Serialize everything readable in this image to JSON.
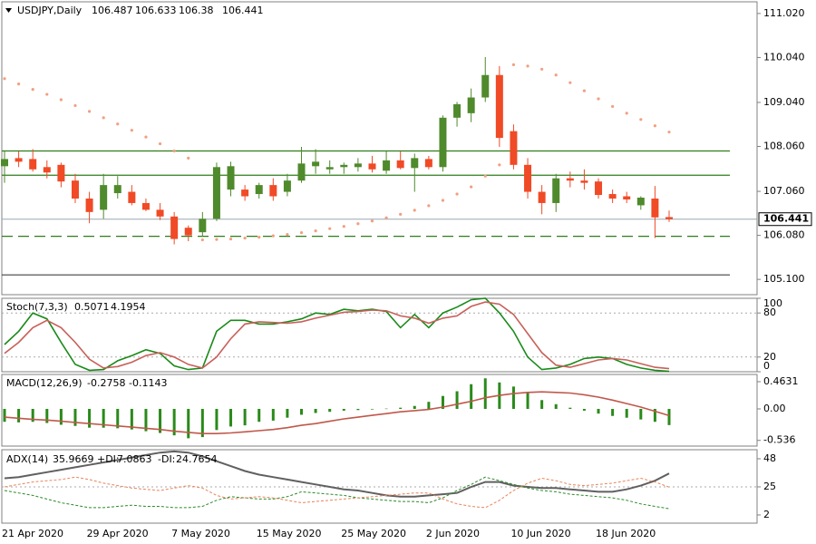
{
  "chart_data": [
    {
      "type": "candlestick",
      "title": "USDJPY,Daily",
      "categories": [
        "21 Apr 2020",
        null,
        null,
        null,
        null,
        null,
        "29 Apr 2020",
        null,
        null,
        null,
        null,
        null,
        "7 May 2020",
        null,
        null,
        null,
        null,
        null,
        "15 May 2020",
        null,
        null,
        null,
        null,
        null,
        "25 May 2020",
        null,
        null,
        null,
        null,
        null,
        "2 Jun 2020",
        null,
        null,
        null,
        null,
        null,
        "10 Jun 2020",
        null,
        null,
        null,
        null,
        null,
        "18 Jun 2020",
        null,
        null,
        null,
        null,
        null
      ],
      "open": [
        107.62,
        107.8,
        107.78,
        107.6,
        107.65,
        107.3,
        106.9,
        106.65,
        107.02,
        107.05,
        106.8,
        106.65,
        106.5,
        106.25,
        106.15,
        106.45,
        107.1,
        107.1,
        107.0,
        107.2,
        107.05,
        107.3,
        107.62,
        107.55,
        107.6,
        107.6,
        107.68,
        107.52,
        107.75,
        107.58,
        107.78,
        107.6,
        108.7,
        108.8,
        109.15,
        109.65,
        108.4,
        107.65,
        107.05,
        106.8,
        107.35,
        107.3,
        107.28,
        107.0,
        106.95,
        106.75,
        106.9,
        106.487
      ],
      "high": [
        107.95,
        107.95,
        108.0,
        107.75,
        107.7,
        107.45,
        107.05,
        107.45,
        107.4,
        107.2,
        106.9,
        106.8,
        106.6,
        106.3,
        106.6,
        107.7,
        107.72,
        107.2,
        107.25,
        107.35,
        107.45,
        108.05,
        108.0,
        107.75,
        107.7,
        107.8,
        107.85,
        107.95,
        107.95,
        107.9,
        107.85,
        108.75,
        109.05,
        109.35,
        110.05,
        109.85,
        108.55,
        107.8,
        107.2,
        107.45,
        107.5,
        107.55,
        107.35,
        107.1,
        107.05,
        106.95,
        107.18,
        106.633
      ],
      "low": [
        107.25,
        107.6,
        107.5,
        107.35,
        107.15,
        106.8,
        106.35,
        106.45,
        106.9,
        106.75,
        106.62,
        106.42,
        105.88,
        105.95,
        106.05,
        106.4,
        106.95,
        106.85,
        106.9,
        106.85,
        106.95,
        107.25,
        107.45,
        107.45,
        107.45,
        107.5,
        107.48,
        107.45,
        107.55,
        107.05,
        107.55,
        107.5,
        108.5,
        108.6,
        109.05,
        108.05,
        107.55,
        106.9,
        106.55,
        106.6,
        107.15,
        107.1,
        106.9,
        106.8,
        106.8,
        106.65,
        106.02,
        106.38
      ],
      "close": [
        107.78,
        107.72,
        107.55,
        107.48,
        107.28,
        106.9,
        106.6,
        107.2,
        107.2,
        106.8,
        106.65,
        106.5,
        106.0,
        106.08,
        106.45,
        107.6,
        107.62,
        106.95,
        107.2,
        106.95,
        107.3,
        107.68,
        107.72,
        107.6,
        107.65,
        107.68,
        107.55,
        107.75,
        107.58,
        107.8,
        107.6,
        108.7,
        109.0,
        109.15,
        109.65,
        108.25,
        107.65,
        107.05,
        106.8,
        107.35,
        107.3,
        107.25,
        106.98,
        106.9,
        106.88,
        106.92,
        106.48,
        106.441
      ],
      "up_color": "#4f8a2c",
      "down_color": "#f04a26",
      "sar": {
        "color": "#f0a080",
        "values": [
          109.57,
          109.45,
          109.33,
          109.22,
          109.1,
          108.97,
          108.84,
          108.7,
          108.56,
          108.42,
          108.27,
          108.12,
          107.96,
          107.8,
          105.98,
          105.99,
          106.0,
          106.02,
          106.04,
          106.07,
          106.1,
          106.14,
          106.18,
          106.23,
          106.28,
          106.34,
          106.4,
          106.47,
          106.55,
          106.64,
          106.74,
          106.86,
          107.0,
          107.16,
          107.4,
          107.65,
          109.88,
          109.85,
          109.78,
          109.65,
          109.48,
          109.3,
          109.12,
          108.95,
          108.8,
          108.66,
          108.52,
          108.38
        ]
      },
      "levels": [
        {
          "value": 107.96,
          "color": "#2e7d1a",
          "style": "solid"
        },
        {
          "value": 107.42,
          "color": "#2e7d1a",
          "style": "solid"
        },
        {
          "value": 106.06,
          "color": "#2e7d1a",
          "style": "dashed"
        },
        {
          "value": 105.2,
          "color": "#404040",
          "style": "solid"
        }
      ],
      "price_line_color": "#9aa8b0",
      "ylim": [
        104.76,
        111.28
      ],
      "yticks": [
        {
          "value": 105.1,
          "label": "105.100"
        },
        {
          "value": 106.08,
          "label": "106.080"
        },
        {
          "value": 107.06,
          "label": "107.060"
        },
        {
          "value": 108.06,
          "label": "108.060"
        },
        {
          "value": 109.04,
          "label": "109.040"
        },
        {
          "value": 110.04,
          "label": "110.040"
        },
        {
          "value": 111.02,
          "label": "111.020"
        }
      ],
      "grid": false
    },
    {
      "type": "line",
      "title": "Stoch(7,3,3)",
      "series": [
        {
          "color": "#1a8a1a",
          "width": 1.6,
          "style": "solid",
          "values": [
            37,
            55,
            80,
            72,
            40,
            10,
            2,
            3,
            15,
            22,
            30,
            25,
            8,
            3,
            5,
            55,
            70,
            70,
            65,
            65,
            68,
            72,
            80,
            78,
            85,
            83,
            85,
            82,
            60,
            78,
            60,
            80,
            88,
            98,
            100,
            80,
            55,
            20,
            3,
            5,
            10,
            18,
            20,
            18,
            10,
            5,
            2,
            0.5071
          ]
        },
        {
          "color": "#c8605a",
          "width": 1.6,
          "style": "solid",
          "values": [
            25,
            40,
            60,
            70,
            60,
            40,
            17,
            5,
            7,
            13,
            22,
            26,
            20,
            10,
            5,
            20,
            45,
            65,
            68,
            67,
            66,
            68,
            73,
            77,
            81,
            82,
            84,
            83,
            76,
            73,
            66,
            73,
            76,
            89,
            95,
            92,
            78,
            52,
            26,
            9,
            6,
            11,
            16,
            18,
            16,
            11,
            6,
            4.1954
          ]
        }
      ],
      "levels": [
        20,
        80
      ],
      "ylim": [
        0,
        100
      ],
      "yticks": [
        0,
        20,
        80,
        100
      ]
    },
    {
      "type": "line",
      "title": "MACD(12,26,9)",
      "series": [
        {
          "color": "#2a8a1a",
          "width": 3,
          "style": "bar",
          "values": [
            -0.22,
            -0.23,
            -0.22,
            -0.24,
            -0.27,
            -0.29,
            -0.32,
            -0.32,
            -0.33,
            -0.35,
            -0.38,
            -0.41,
            -0.45,
            -0.5,
            -0.48,
            -0.36,
            -0.3,
            -0.28,
            -0.22,
            -0.2,
            -0.15,
            -0.1,
            -0.07,
            -0.05,
            -0.03,
            -0.02,
            -0.01,
            0.005,
            0.02,
            0.05,
            0.12,
            0.22,
            0.3,
            0.42,
            0.52,
            0.45,
            0.38,
            0.28,
            0.15,
            0.08,
            0.02,
            -0.03,
            -0.08,
            -0.12,
            -0.15,
            -0.18,
            -0.22,
            -0.2758
          ]
        },
        {
          "color": "#c0584a",
          "width": 1.6,
          "style": "solid",
          "values": [
            -0.14,
            -0.16,
            -0.18,
            -0.19,
            -0.21,
            -0.23,
            -0.25,
            -0.27,
            -0.29,
            -0.31,
            -0.33,
            -0.35,
            -0.38,
            -0.4,
            -0.42,
            -0.42,
            -0.41,
            -0.39,
            -0.37,
            -0.35,
            -0.32,
            -0.28,
            -0.25,
            -0.21,
            -0.17,
            -0.14,
            -0.11,
            -0.08,
            -0.05,
            -0.03,
            -0.01,
            0.03,
            0.08,
            0.13,
            0.19,
            0.23,
            0.26,
            0.28,
            0.29,
            0.28,
            0.27,
            0.24,
            0.2,
            0.15,
            0.09,
            0.03,
            -0.04,
            -0.1143
          ]
        }
      ],
      "ylim": [
        -0.633,
        0.586
      ],
      "yticks": [
        -0.536,
        {
          "value": 0,
          "label": "0.00"
        },
        0.4631
      ]
    },
    {
      "type": "line",
      "title": "ADX(14)",
      "series": [
        {
          "color": "#606060",
          "width": 2,
          "style": "solid",
          "values": [
            32,
            33,
            35,
            37,
            39,
            41,
            43,
            45,
            47,
            49,
            51,
            53,
            54,
            53,
            50,
            46,
            42,
            38,
            35,
            33,
            31,
            29,
            27,
            25,
            23,
            22,
            20,
            18,
            17,
            17,
            18,
            19,
            20,
            25,
            29,
            29,
            26,
            25,
            24,
            24,
            23,
            22,
            21,
            21,
            23,
            26,
            30,
            35.9669
          ]
        },
        {
          "label": "+DI:",
          "color": "#2a8a2a",
          "width": 1,
          "style": "dashed",
          "values": [
            22,
            20,
            18,
            15,
            12,
            10,
            8,
            8,
            9,
            10,
            9,
            9,
            8,
            8,
            9,
            14,
            17,
            16,
            15,
            15,
            17,
            21,
            20,
            19,
            18,
            16,
            15,
            14,
            13,
            13,
            12,
            16,
            22,
            27,
            33,
            30,
            27,
            24,
            22,
            21,
            19,
            18,
            17,
            16,
            14,
            11,
            9,
            7.0863
          ]
        },
        {
          "label": "-DI:",
          "color": "#e8845a",
          "width": 1,
          "style": "dashed",
          "values": [
            25,
            27,
            29,
            30,
            31,
            33,
            31,
            28,
            26,
            24,
            23,
            22,
            24,
            26,
            24,
            18,
            15,
            16,
            17,
            16,
            14,
            12,
            13,
            14,
            15,
            16,
            17,
            18,
            19,
            20,
            20,
            15,
            11,
            9,
            8,
            14,
            22,
            28,
            32,
            30,
            27,
            26,
            27,
            28,
            30,
            32,
            29,
            24.7654
          ]
        }
      ],
      "levels": [
        25
      ],
      "ylim": [
        -4.7,
        55.4
      ],
      "yticks": [
        2,
        25,
        48
      ]
    }
  ]
}
